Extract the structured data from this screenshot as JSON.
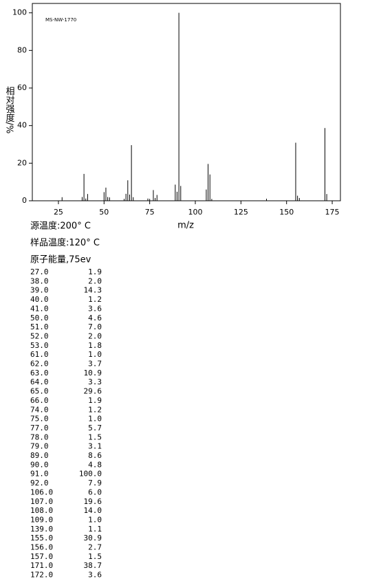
{
  "chart_data": {
    "type": "stem",
    "annotation": "MS-NW-1770",
    "x_label": "m/z",
    "y_label": "相对强度/%",
    "x": [
      27,
      38,
      39,
      40,
      41,
      50,
      51,
      52,
      53,
      61,
      62,
      63,
      64,
      65,
      66,
      74,
      75,
      77,
      78,
      79,
      89,
      90,
      91,
      92,
      106,
      107,
      108,
      109,
      139,
      155,
      156,
      157,
      171,
      172
    ],
    "values": [
      1.9,
      2.0,
      14.3,
      1.2,
      3.6,
      4.6,
      7.0,
      2.0,
      1.8,
      1.0,
      3.7,
      10.9,
      3.3,
      29.6,
      1.9,
      1.2,
      1.0,
      5.7,
      1.5,
      3.1,
      8.6,
      4.8,
      100.0,
      7.9,
      6.0,
      19.6,
      14.0,
      1.0,
      1.1,
      30.9,
      2.7,
      1.5,
      38.7,
      3.6
    ],
    "color": "#000000",
    "xlim": [
      10.7,
      179.5
    ],
    "xticks": [
      25,
      50,
      75,
      100,
      125,
      150,
      175
    ],
    "ylim": [
      0,
      105
    ],
    "yticks": [
      0,
      20,
      40,
      60,
      80,
      100
    ]
  },
  "conditions": [
    "源温度:200° C",
    "样品温度:120° C",
    "原子能量,75ev"
  ],
  "table": {
    "rows": [
      [
        "27.0",
        "1.9"
      ],
      [
        "38.0",
        "2.0"
      ],
      [
        "39.0",
        "14.3"
      ],
      [
        "40.0",
        "1.2"
      ],
      [
        "41.0",
        "3.6"
      ],
      [
        "50.0",
        "4.6"
      ],
      [
        "51.0",
        "7.0"
      ],
      [
        "52.0",
        "2.0"
      ],
      [
        "53.0",
        "1.8"
      ],
      [
        "61.0",
        "1.0"
      ],
      [
        "62.0",
        "3.7"
      ],
      [
        "63.0",
        "10.9"
      ],
      [
        "64.0",
        "3.3"
      ],
      [
        "65.0",
        "29.6"
      ],
      [
        "66.0",
        "1.9"
      ],
      [
        "74.0",
        "1.2"
      ],
      [
        "75.0",
        "1.0"
      ],
      [
        "77.0",
        "5.7"
      ],
      [
        "78.0",
        "1.5"
      ],
      [
        "79.0",
        "3.1"
      ],
      [
        "89.0",
        "8.6"
      ],
      [
        "90.0",
        "4.8"
      ],
      [
        "91.0",
        "100.0"
      ],
      [
        "92.0",
        "7.9"
      ],
      [
        "106.0",
        "6.0"
      ],
      [
        "107.0",
        "19.6"
      ],
      [
        "108.0",
        "14.0"
      ],
      [
        "109.0",
        "1.0"
      ],
      [
        "139.0",
        "1.1"
      ],
      [
        "155.0",
        "30.9"
      ],
      [
        "156.0",
        "2.7"
      ],
      [
        "157.0",
        "1.5"
      ],
      [
        "171.0",
        "38.7"
      ],
      [
        "172.0",
        "3.6"
      ]
    ]
  }
}
